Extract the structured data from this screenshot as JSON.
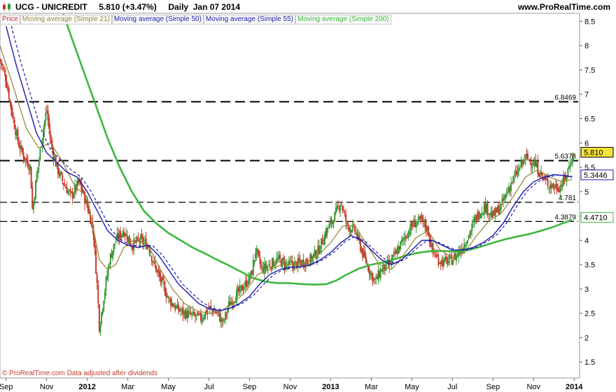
{
  "header": {
    "title": "UCG - UNICREDIT     5.810 (+3.47%)     Daily  Jan 07 2014",
    "site": "www.ProRealTime.com"
  },
  "legend": [
    {
      "label": "Price",
      "color": "#d03030"
    },
    {
      "label": "Moving average (Simple 21)",
      "color": "#9a8a3a"
    },
    {
      "label": "Moving average (Simple 50)",
      "color": "#1a1aaa"
    },
    {
      "label": "Moving average (Simple 55)",
      "color": "#1a1aaa"
    },
    {
      "label": "Moving average (Simple 200)",
      "color": "#3cb83c"
    }
  ],
  "footer": "© ProRealTime.com  Data adjusted after dividends",
  "chart_data": {
    "type": "line",
    "y_ticks": [
      "1.5",
      "2",
      "2.5",
      "3",
      "3.5",
      "4",
      "4.5",
      "5",
      "5.5",
      "6",
      "6.5",
      "7",
      "7.5",
      "8",
      "8.5"
    ],
    "ylim": [
      1.2,
      8.65
    ],
    "x_ticks": [
      "Sep",
      "Nov",
      "2012",
      "Mar",
      "May",
      "Jul",
      "Sep",
      "Nov",
      "2013",
      "Mar",
      "May",
      "Jul",
      "Sep",
      "Nov",
      "2014"
    ],
    "x_tick_bold": [
      "2012",
      "2013",
      "2014"
    ],
    "x_tick_months": [
      0,
      2,
      4,
      6,
      8,
      10,
      12,
      14,
      16,
      18,
      20,
      22,
      24,
      26,
      28
    ],
    "xlim_months": [
      -0.3,
      28.2
    ],
    "support_lines": [
      {
        "value": 6.8469,
        "label": "6.8469",
        "style": "heavy"
      },
      {
        "value": 5.6378,
        "label": "5.6378",
        "style": "heavy"
      },
      {
        "value": 4.781,
        "label": "4.781",
        "style": "light"
      },
      {
        "value": 4.3879,
        "label": "4.3879",
        "style": "light"
      }
    ],
    "price_points": [
      [
        -0.5,
        8.0
      ],
      [
        0,
        7.3
      ],
      [
        0.3,
        6.6
      ],
      [
        0.6,
        6.0
      ],
      [
        0.9,
        5.7
      ],
      [
        1.2,
        5.5
      ],
      [
        1.3,
        4.6
      ],
      [
        1.5,
        5.3
      ],
      [
        1.8,
        6.2
      ],
      [
        2.0,
        6.7
      ],
      [
        2.2,
        6.0
      ],
      [
        2.5,
        5.5
      ],
      [
        2.8,
        5.2
      ],
      [
        3.2,
        4.9
      ],
      [
        3.6,
        5.2
      ],
      [
        4.0,
        4.7
      ],
      [
        4.3,
        4.2
      ],
      [
        4.5,
        3.0
      ],
      [
        4.6,
        2.2
      ],
      [
        4.8,
        2.8
      ],
      [
        5.1,
        3.6
      ],
      [
        5.4,
        4.0
      ],
      [
        5.8,
        4.2
      ],
      [
        6.2,
        3.9
      ],
      [
        6.6,
        4.0
      ],
      [
        7.0,
        3.9
      ],
      [
        7.3,
        3.5
      ],
      [
        7.7,
        3.1
      ],
      [
        8.0,
        2.8
      ],
      [
        8.4,
        2.6
      ],
      [
        8.8,
        2.5
      ],
      [
        9.2,
        2.45
      ],
      [
        9.6,
        2.4
      ],
      [
        10.0,
        2.6
      ],
      [
        10.4,
        2.5
      ],
      [
        10.7,
        2.3
      ],
      [
        11.0,
        2.7
      ],
      [
        11.4,
        2.9
      ],
      [
        11.8,
        3.1
      ],
      [
        12.1,
        3.3
      ],
      [
        12.3,
        3.8
      ],
      [
        12.6,
        3.4
      ],
      [
        13.0,
        3.5
      ],
      [
        13.4,
        3.6
      ],
      [
        13.8,
        3.5
      ],
      [
        14.2,
        3.5
      ],
      [
        14.6,
        3.55
      ],
      [
        15.0,
        3.6
      ],
      [
        15.4,
        3.8
      ],
      [
        15.8,
        4.2
      ],
      [
        16.2,
        4.5
      ],
      [
        16.5,
        4.8
      ],
      [
        16.8,
        4.3
      ],
      [
        17.2,
        4.2
      ],
      [
        17.6,
        3.7
      ],
      [
        18.0,
        3.3
      ],
      [
        18.2,
        3.15
      ],
      [
        18.5,
        3.4
      ],
      [
        18.9,
        3.5
      ],
      [
        19.3,
        3.8
      ],
      [
        19.7,
        4.1
      ],
      [
        20.1,
        4.35
      ],
      [
        20.5,
        4.4
      ],
      [
        20.8,
        4.2
      ],
      [
        21.0,
        3.8
      ],
      [
        21.3,
        3.6
      ],
      [
        21.6,
        3.55
      ],
      [
        22.0,
        3.6
      ],
      [
        22.4,
        3.8
      ],
      [
        22.8,
        4.1
      ],
      [
        23.2,
        4.5
      ],
      [
        23.6,
        4.7
      ],
      [
        24.0,
        4.5
      ],
      [
        24.4,
        4.7
      ],
      [
        24.8,
        5.1
      ],
      [
        25.2,
        5.4
      ],
      [
        25.6,
        5.7
      ],
      [
        26.0,
        5.6
      ],
      [
        26.3,
        5.4
      ],
      [
        26.6,
        5.2
      ],
      [
        27.0,
        5.1
      ],
      [
        27.3,
        5.1
      ],
      [
        27.6,
        5.3
      ],
      [
        27.8,
        5.6
      ],
      [
        28.0,
        5.81
      ]
    ],
    "sma21_points": [
      [
        -0.3,
        8.0
      ],
      [
        0.4,
        7.1
      ],
      [
        1.0,
        6.3
      ],
      [
        1.6,
        5.9
      ],
      [
        2.2,
        6.0
      ],
      [
        2.8,
        5.6
      ],
      [
        3.4,
        5.1
      ],
      [
        4.0,
        4.9
      ],
      [
        4.6,
        3.6
      ],
      [
        5.0,
        3.4
      ],
      [
        5.4,
        3.5
      ],
      [
        5.8,
        3.85
      ],
      [
        6.4,
        4.05
      ],
      [
        7.0,
        3.9
      ],
      [
        7.6,
        3.4
      ],
      [
        8.2,
        3.0
      ],
      [
        8.8,
        2.7
      ],
      [
        9.4,
        2.55
      ],
      [
        10.0,
        2.5
      ],
      [
        10.6,
        2.55
      ],
      [
        11.2,
        2.7
      ],
      [
        11.8,
        2.95
      ],
      [
        12.4,
        3.3
      ],
      [
        13.0,
        3.4
      ],
      [
        13.6,
        3.5
      ],
      [
        14.2,
        3.5
      ],
      [
        14.8,
        3.55
      ],
      [
        15.4,
        3.7
      ],
      [
        16.0,
        3.95
      ],
      [
        16.6,
        4.3
      ],
      [
        17.2,
        4.3
      ],
      [
        17.8,
        3.9
      ],
      [
        18.4,
        3.5
      ],
      [
        19.0,
        3.4
      ],
      [
        19.6,
        3.7
      ],
      [
        20.2,
        4.05
      ],
      [
        20.8,
        4.2
      ],
      [
        21.4,
        3.8
      ],
      [
        22.0,
        3.65
      ],
      [
        22.6,
        3.75
      ],
      [
        23.2,
        4.1
      ],
      [
        23.8,
        4.4
      ],
      [
        24.4,
        4.55
      ],
      [
        25.0,
        4.9
      ],
      [
        25.6,
        5.3
      ],
      [
        26.2,
        5.45
      ],
      [
        26.8,
        5.3
      ],
      [
        27.4,
        5.2
      ],
      [
        27.9,
        5.25
      ]
    ],
    "sma50_points": [
      [
        0,
        8.4
      ],
      [
        0.5,
        7.6
      ],
      [
        1.0,
        6.9
      ],
      [
        1.5,
        6.2
      ],
      [
        2.0,
        5.8
      ],
      [
        2.5,
        5.6
      ],
      [
        3.0,
        5.4
      ],
      [
        3.5,
        5.3
      ],
      [
        4.0,
        5.0
      ],
      [
        4.5,
        4.6
      ],
      [
        5.0,
        4.2
      ],
      [
        5.5,
        4.0
      ],
      [
        6.0,
        3.9
      ],
      [
        6.5,
        3.85
      ],
      [
        7.0,
        3.9
      ],
      [
        7.5,
        3.7
      ],
      [
        8.0,
        3.4
      ],
      [
        8.5,
        3.1
      ],
      [
        9.0,
        2.9
      ],
      [
        9.5,
        2.7
      ],
      [
        10.0,
        2.6
      ],
      [
        10.5,
        2.55
      ],
      [
        11.0,
        2.6
      ],
      [
        11.5,
        2.7
      ],
      [
        12.0,
        2.85
      ],
      [
        12.5,
        3.1
      ],
      [
        13.0,
        3.3
      ],
      [
        13.5,
        3.4
      ],
      [
        14.0,
        3.45
      ],
      [
        14.5,
        3.45
      ],
      [
        15.0,
        3.5
      ],
      [
        15.5,
        3.6
      ],
      [
        16.0,
        3.75
      ],
      [
        16.5,
        3.95
      ],
      [
        17.0,
        4.1
      ],
      [
        17.5,
        4.0
      ],
      [
        18.0,
        3.8
      ],
      [
        18.5,
        3.6
      ],
      [
        19.0,
        3.5
      ],
      [
        19.5,
        3.6
      ],
      [
        20.0,
        3.8
      ],
      [
        20.5,
        4.0
      ],
      [
        21.0,
        4.0
      ],
      [
        21.5,
        3.9
      ],
      [
        22.0,
        3.8
      ],
      [
        22.5,
        3.8
      ],
      [
        23.0,
        3.85
      ],
      [
        23.5,
        3.95
      ],
      [
        24.0,
        4.1
      ],
      [
        24.5,
        4.35
      ],
      [
        25.0,
        4.7
      ],
      [
        25.5,
        5.0
      ],
      [
        26.0,
        5.2
      ],
      [
        26.5,
        5.3
      ],
      [
        27.0,
        5.35
      ],
      [
        27.5,
        5.33
      ],
      [
        27.9,
        5.3
      ]
    ],
    "sma55_points": [
      [
        0.2,
        8.5
      ],
      [
        0.7,
        7.7
      ],
      [
        1.2,
        7.0
      ],
      [
        1.7,
        6.3
      ],
      [
        2.2,
        5.85
      ],
      [
        2.7,
        5.65
      ],
      [
        3.2,
        5.45
      ],
      [
        3.7,
        5.3
      ],
      [
        4.2,
        5.0
      ],
      [
        4.7,
        4.6
      ],
      [
        5.2,
        4.2
      ],
      [
        5.7,
        4.0
      ],
      [
        6.2,
        3.9
      ],
      [
        6.7,
        3.88
      ],
      [
        7.2,
        3.9
      ],
      [
        7.7,
        3.7
      ],
      [
        8.2,
        3.4
      ],
      [
        8.7,
        3.1
      ],
      [
        9.2,
        2.9
      ],
      [
        9.7,
        2.72
      ],
      [
        10.2,
        2.6
      ],
      [
        10.7,
        2.57
      ],
      [
        11.2,
        2.62
      ],
      [
        11.7,
        2.72
      ],
      [
        12.2,
        2.87
      ],
      [
        12.7,
        3.1
      ],
      [
        13.2,
        3.3
      ],
      [
        13.7,
        3.4
      ],
      [
        14.2,
        3.45
      ],
      [
        14.7,
        3.47
      ],
      [
        15.2,
        3.52
      ],
      [
        15.7,
        3.62
      ],
      [
        16.2,
        3.77
      ],
      [
        16.7,
        3.97
      ],
      [
        17.2,
        4.08
      ],
      [
        17.7,
        3.98
      ],
      [
        18.2,
        3.78
      ],
      [
        18.7,
        3.6
      ],
      [
        19.2,
        3.52
      ],
      [
        19.7,
        3.62
      ],
      [
        20.2,
        3.82
      ],
      [
        20.7,
        3.98
      ],
      [
        21.2,
        3.98
      ],
      [
        21.7,
        3.88
      ],
      [
        22.2,
        3.8
      ],
      [
        22.7,
        3.8
      ],
      [
        23.2,
        3.86
      ],
      [
        23.7,
        3.97
      ],
      [
        24.2,
        4.12
      ],
      [
        24.7,
        4.37
      ],
      [
        25.2,
        4.72
      ],
      [
        25.7,
        5.02
      ],
      [
        26.2,
        5.2
      ],
      [
        26.7,
        5.3
      ],
      [
        27.2,
        5.34
      ],
      [
        27.6,
        5.33
      ],
      [
        27.9,
        5.32
      ]
    ],
    "sma200_points": [
      [
        2.7,
        8.8
      ],
      [
        3.2,
        8.2
      ],
      [
        3.8,
        7.5
      ],
      [
        4.4,
        6.8
      ],
      [
        5.0,
        6.1
      ],
      [
        5.6,
        5.5
      ],
      [
        6.2,
        5.0
      ],
      [
        6.8,
        4.6
      ],
      [
        7.4,
        4.35
      ],
      [
        8.0,
        4.15
      ],
      [
        8.6,
        4.0
      ],
      [
        9.2,
        3.85
      ],
      [
        9.8,
        3.73
      ],
      [
        10.4,
        3.6
      ],
      [
        11.0,
        3.48
      ],
      [
        11.6,
        3.35
      ],
      [
        12.2,
        3.22
      ],
      [
        12.8,
        3.15
      ],
      [
        13.4,
        3.12
      ],
      [
        14.0,
        3.12
      ],
      [
        14.6,
        3.1
      ],
      [
        15.2,
        3.09
      ],
      [
        15.8,
        3.1
      ],
      [
        16.3,
        3.18
      ],
      [
        16.8,
        3.3
      ],
      [
        17.4,
        3.42
      ],
      [
        18.0,
        3.5
      ],
      [
        18.6,
        3.55
      ],
      [
        19.2,
        3.62
      ],
      [
        19.8,
        3.7
      ],
      [
        20.4,
        3.75
      ],
      [
        21.0,
        3.78
      ],
      [
        21.6,
        3.78
      ],
      [
        22.2,
        3.77
      ],
      [
        22.8,
        3.8
      ],
      [
        23.4,
        3.87
      ],
      [
        24.0,
        3.95
      ],
      [
        24.6,
        4.02
      ],
      [
        25.2,
        4.08
      ],
      [
        25.8,
        4.13
      ],
      [
        26.4,
        4.2
      ],
      [
        27.0,
        4.28
      ],
      [
        27.5,
        4.36
      ],
      [
        27.9,
        4.42
      ]
    ],
    "badges": [
      {
        "value": 5.81,
        "label": "5.810",
        "fill": "#f5e23a",
        "border": "#000000"
      },
      {
        "value": 5.3446,
        "label": "5.3446",
        "fill": "#ffffff",
        "border": "#1a1aaa"
      },
      {
        "value": 4.471,
        "label": "4.4710",
        "fill": "#ffffff",
        "border": "#3cb83c"
      }
    ]
  }
}
